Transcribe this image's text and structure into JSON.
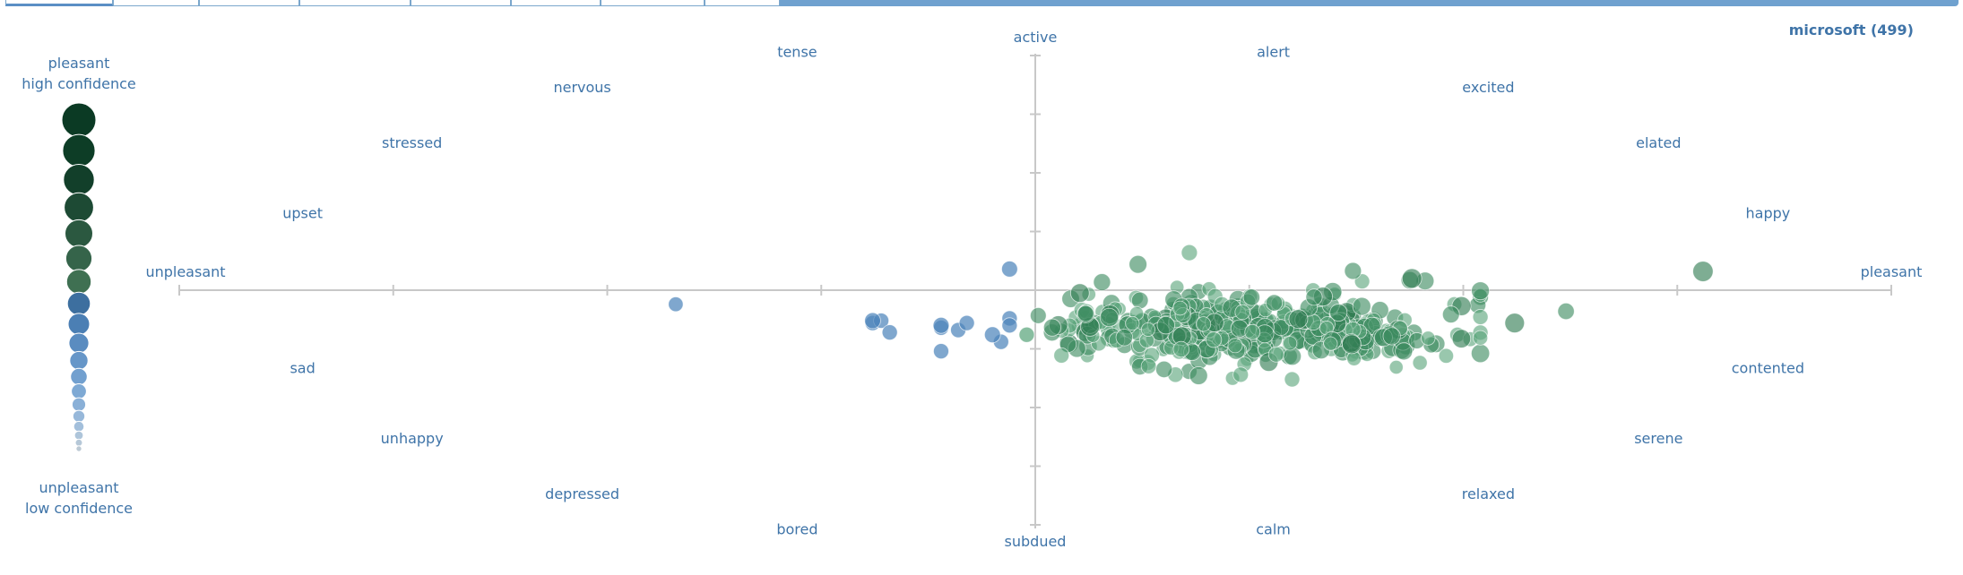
{
  "tabs": [
    {
      "label": "",
      "active": true
    },
    {
      "label": "",
      "active": false
    },
    {
      "label": "",
      "active": false
    },
    {
      "label": "",
      "active": false
    },
    {
      "label": "",
      "active": false
    },
    {
      "label": "",
      "active": false
    },
    {
      "label": "",
      "active": false
    },
    {
      "label": "",
      "active": false
    },
    {
      "label": "",
      "active": false
    }
  ],
  "colors": {
    "pleasant_high": "#0b3a24",
    "mid_green": "#3d7a56",
    "light_green": "#7fbf98",
    "unpleasant_blue": "#2f6fa9",
    "light_blue": "#8fb6dc",
    "low_grey": "#b9c3cc",
    "label": "#3f74a8",
    "axis": "#c8c8c8",
    "tab_border": "#7ba7cc",
    "tab_fill": "#6fa1cf"
  },
  "chart_data": {
    "type": "scatter",
    "title": "microsoft (499)",
    "x_axis": {
      "negative_label": "unpleasant",
      "positive_label": "pleasant",
      "range": [
        -1,
        1
      ]
    },
    "y_axis": {
      "positive_label": "active",
      "negative_label": "subdued",
      "range": [
        -1,
        1
      ]
    },
    "mood_labels": [
      {
        "text": "tense",
        "x": -0.309,
        "y": 0.951
      },
      {
        "text": "alert",
        "x": 0.309,
        "y": 0.951
      },
      {
        "text": "nervous",
        "x": -0.588,
        "y": 0.809
      },
      {
        "text": "excited",
        "x": 0.588,
        "y": 0.809
      },
      {
        "text": "stressed",
        "x": -0.809,
        "y": 0.588
      },
      {
        "text": "elated",
        "x": 0.809,
        "y": 0.588
      },
      {
        "text": "upset",
        "x": -0.951,
        "y": 0.309
      },
      {
        "text": "happy",
        "x": 0.951,
        "y": 0.309
      },
      {
        "text": "sad",
        "x": -0.951,
        "y": -0.309
      },
      {
        "text": "contented",
        "x": 0.951,
        "y": -0.309
      },
      {
        "text": "unhappy",
        "x": -0.809,
        "y": -0.588
      },
      {
        "text": "serene",
        "x": 0.809,
        "y": -0.588
      },
      {
        "text": "depressed",
        "x": -0.588,
        "y": -0.809
      },
      {
        "text": "relaxed",
        "x": 0.588,
        "y": -0.809
      },
      {
        "text": "bored",
        "x": -0.309,
        "y": -0.951
      },
      {
        "text": "calm",
        "x": 0.309,
        "y": -0.951
      }
    ],
    "legend": {
      "top_line1": "pleasant",
      "top_line2": "high confidence",
      "bottom_line1": "unpleasant",
      "bottom_line2": "low confidence",
      "placement": "left"
    },
    "grid": false,
    "notable_points": [
      {
        "x": 0.78,
        "y": 0.08,
        "size": 0.9,
        "pleasant": true
      },
      {
        "x": -0.42,
        "y": -0.06,
        "size": 0.45,
        "pleasant": false
      },
      {
        "x": -0.03,
        "y": 0.09,
        "size": 0.55,
        "pleasant": false
      },
      {
        "x": 0.12,
        "y": 0.11,
        "size": 0.7,
        "pleasant": true
      },
      {
        "x": 0.18,
        "y": 0.16,
        "size": 0.55,
        "pleasant": true
      },
      {
        "x": 0.44,
        "y": 0.05,
        "size": 0.85,
        "pleasant": true
      },
      {
        "x": 0.62,
        "y": -0.09,
        "size": 0.6,
        "pleasant": true
      },
      {
        "x": 0.56,
        "y": -0.14,
        "size": 0.85,
        "pleasant": true
      },
      {
        "x": 0.48,
        "y": -0.28,
        "size": 0.45,
        "pleasant": true
      },
      {
        "x": -0.19,
        "y": -0.13,
        "size": 0.55,
        "pleasant": false
      },
      {
        "x": -0.11,
        "y": -0.15,
        "size": 0.55,
        "pleasant": false
      },
      {
        "x": -0.05,
        "y": -0.19,
        "size": 0.55,
        "pleasant": false
      },
      {
        "x": 0.3,
        "y": -0.38,
        "size": 0.5,
        "pleasant": true
      },
      {
        "x": 0.24,
        "y": -0.36,
        "size": 0.5,
        "pleasant": true
      }
    ]
  }
}
